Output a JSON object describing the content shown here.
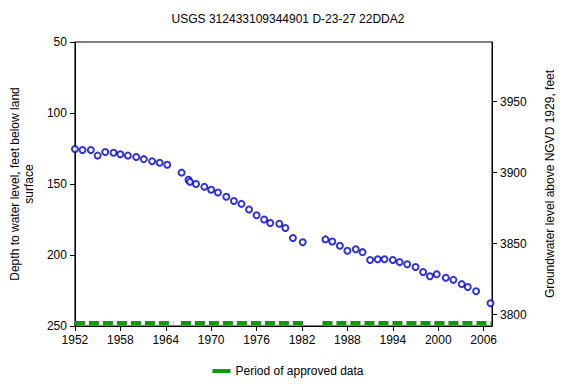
{
  "chart_data": {
    "type": "scatter",
    "title": "USGS 312433109344901 D-23-27 22DDA2",
    "x_label": null,
    "y_label": "Depth to water level, feet below land\nsurface",
    "y2_label": "Groundwater level above NGVD 1929, feet",
    "x": [
      1952.0,
      1953.0,
      1954.1,
      1955.0,
      1956.0,
      1957.1,
      1958.0,
      1959.0,
      1960.1,
      1961.1,
      1962.2,
      1963.2,
      1964.2,
      1966.1,
      1967.0,
      1967.2,
      1968.0,
      1969.1,
      1970.0,
      1970.9,
      1972.0,
      1973.0,
      1974.0,
      1975.0,
      1976.0,
      1977.0,
      1977.8,
      1979.0,
      1979.8,
      1980.8,
      1982.1,
      1985.1,
      1986.0,
      1987.0,
      1988.0,
      1989.1,
      1990.0,
      1991.0,
      1992.0,
      1992.9,
      1994.0,
      1994.9,
      1995.9,
      1997.0,
      1998.0,
      1998.9,
      1999.8,
      2001.0,
      2002.0,
      2003.1,
      2003.9,
      2005.0,
      2006.9
    ],
    "values": [
      125.4,
      126,
      126,
      130,
      127.5,
      128,
      129,
      130,
      131,
      132.5,
      134,
      135,
      136.5,
      142,
      147,
      148.5,
      150,
      152,
      154,
      156,
      159,
      162,
      164,
      168,
      172,
      175,
      177.5,
      178,
      181,
      188,
      191,
      189,
      190.5,
      193.5,
      197,
      196,
      198,
      203.5,
      203,
      203,
      203.5,
      205,
      206.5,
      208.5,
      212,
      215,
      213.5,
      216,
      217.5,
      220.5,
      222.5,
      225.5,
      234
    ],
    "color": "#0000cc",
    "marker": "circle_open",
    "xlim": [
      1952,
      2007.1
    ],
    "xticks": [
      1952,
      1958,
      1964,
      1970,
      1976,
      1982,
      1988,
      1994,
      2000,
      2006
    ],
    "ylim": [
      50,
      250
    ],
    "yticks": [
      50,
      100,
      150,
      200,
      250
    ],
    "y2lim": [
      3792,
      3992
    ],
    "y2ticks": [
      3800,
      3850,
      3900,
      3950
    ],
    "grid": false,
    "legend": "bottom",
    "approved_periods": {
      "name": "Period of approved data",
      "color": "#00a000",
      "line_style": "dashed",
      "periods": [
        [
          1952,
          1965
        ],
        [
          1966,
          1982.2
        ],
        [
          1984.7,
          2007.1
        ]
      ]
    }
  }
}
